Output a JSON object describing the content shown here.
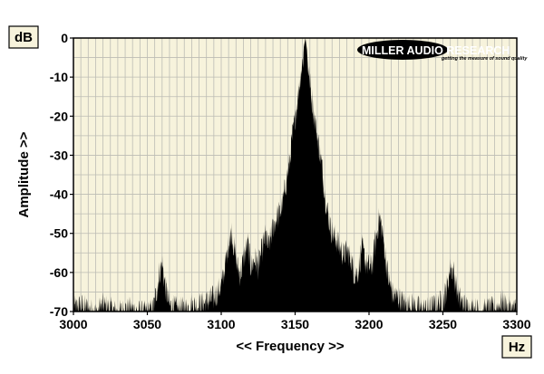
{
  "chart_data": {
    "type": "area",
    "title": "",
    "xlabel": "<< Frequency >>",
    "ylabel": "Amplitude >>",
    "x_unit": "Hz",
    "y_unit": "dB",
    "xlim": [
      3000,
      3300
    ],
    "ylim": [
      -70,
      0
    ],
    "x_ticks": [
      "3000",
      "3050",
      "3100",
      "3150",
      "3200",
      "3250",
      "3300"
    ],
    "y_ticks": [
      "0",
      "-10",
      "-20",
      "-30",
      "-40",
      "-50",
      "-60",
      "-70"
    ],
    "grid": true,
    "series": [
      {
        "x": [
          3000,
          3005,
          3010,
          3015,
          3020,
          3025,
          3030,
          3035,
          3040,
          3045,
          3050,
          3054,
          3056,
          3058,
          3060,
          3062,
          3065,
          3070,
          3075,
          3080,
          3085,
          3090,
          3095,
          3100,
          3103,
          3105,
          3107,
          3109,
          3111,
          3113,
          3115,
          3118,
          3120,
          3123,
          3125,
          3128,
          3130,
          3132,
          3135,
          3138,
          3140,
          3142,
          3144,
          3146,
          3148,
          3150,
          3152,
          3154,
          3156,
          3157,
          3158,
          3160,
          3162,
          3164,
          3166,
          3168,
          3170,
          3172,
          3174,
          3176,
          3178,
          3180,
          3183,
          3185,
          3188,
          3190,
          3193,
          3195,
          3198,
          3200,
          3202,
          3204,
          3206,
          3207,
          3209,
          3211,
          3213,
          3216,
          3220,
          3225,
          3230,
          3235,
          3240,
          3245,
          3250,
          3253,
          3255,
          3257,
          3259,
          3261,
          3264,
          3268,
          3272,
          3276,
          3280,
          3285,
          3288,
          3290,
          3295,
          3300
        ],
        "y": [
          -68,
          -67,
          -68,
          -69,
          -67,
          -68,
          -69,
          -68,
          -68,
          -69,
          -69,
          -68,
          -64,
          -59,
          -56,
          -62,
          -67,
          -68,
          -68,
          -67,
          -67,
          -66,
          -65,
          -62,
          -56,
          -51,
          -48,
          -53,
          -57,
          -59,
          -55,
          -51,
          -57,
          -55,
          -57,
          -52,
          -49,
          -52,
          -47,
          -44,
          -43,
          -40,
          -35,
          -31,
          -24,
          -19,
          -13,
          -7,
          -2,
          0,
          -3,
          -10,
          -16,
          -21,
          -26,
          -31,
          -38,
          -43,
          -47,
          -49,
          -50,
          -52,
          -54,
          -53,
          -55,
          -59,
          -58,
          -52,
          -56,
          -57,
          -57,
          -51,
          -47,
          -44,
          -48,
          -54,
          -60,
          -64,
          -65,
          -67,
          -67,
          -68,
          -68,
          -67,
          -66,
          -62,
          -57,
          -58,
          -62,
          -65,
          -67,
          -68,
          -68,
          -69,
          -68,
          -68,
          -67,
          -66,
          -68,
          -68
        ]
      }
    ]
  },
  "logo": {
    "brand": "MILLER AUDIO RESEARCH",
    "tagline": "getting the measure of sound quality"
  },
  "colors": {
    "plot_bg": "#f7f3dc",
    "grid": "#bcbcb4",
    "fill": "#000000",
    "frame": "#000000"
  }
}
